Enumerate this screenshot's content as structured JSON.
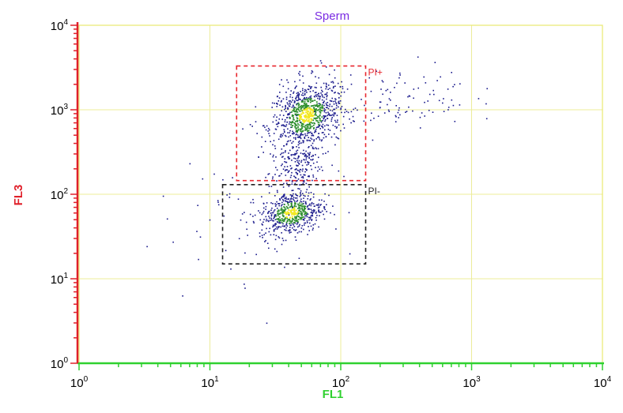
{
  "chart_data": {
    "type": "scatter",
    "title": "Sperm",
    "xlabel": "FL1",
    "ylabel": "FL3",
    "xscale": "log",
    "yscale": "log",
    "xlim": [
      1,
      10000
    ],
    "ylim": [
      1,
      10000
    ],
    "grid": true,
    "x_ticks": [
      {
        "base": "10",
        "exp": "0"
      },
      {
        "base": "10",
        "exp": "1"
      },
      {
        "base": "10",
        "exp": "2"
      },
      {
        "base": "10",
        "exp": "3"
      },
      {
        "base": "10",
        "exp": "4"
      }
    ],
    "y_ticks": [
      {
        "base": "10",
        "exp": "0"
      },
      {
        "base": "10",
        "exp": "1"
      },
      {
        "base": "10",
        "exp": "2"
      },
      {
        "base": "10",
        "exp": "3"
      },
      {
        "base": "10",
        "exp": "4"
      }
    ],
    "gates": [
      {
        "name": "PI+",
        "color": "#e8262d",
        "x": [
          16,
          155
        ],
        "y": [
          145,
          3300
        ]
      },
      {
        "name": "PI-",
        "color": "#222222",
        "x": [
          12.5,
          155
        ],
        "y": [
          15,
          130
        ]
      }
    ],
    "populations": [
      {
        "center": [
          55,
          850
        ],
        "spread": [
          0.13,
          0.2
        ],
        "count": 850
      },
      {
        "center": [
          42,
          60
        ],
        "spread": [
          0.12,
          0.13
        ],
        "count": 550
      },
      {
        "center": [
          45,
          200
        ],
        "spread": [
          0.1,
          0.15
        ],
        "count": 180
      },
      {
        "center": [
          250,
          1300
        ],
        "spread": [
          0.3,
          0.2
        ],
        "count": 110
      },
      {
        "center": [
          25,
          70
        ],
        "spread": [
          0.4,
          0.45
        ],
        "count": 60
      }
    ],
    "colors": {
      "low": "#1a1a8c",
      "mid": "#2f8f2f",
      "high": "#f3e81f",
      "axis_x": "#2fd12f",
      "axis_y": "#e0202a",
      "grid": "#ecec9a",
      "frame": "#e8e870"
    }
  }
}
